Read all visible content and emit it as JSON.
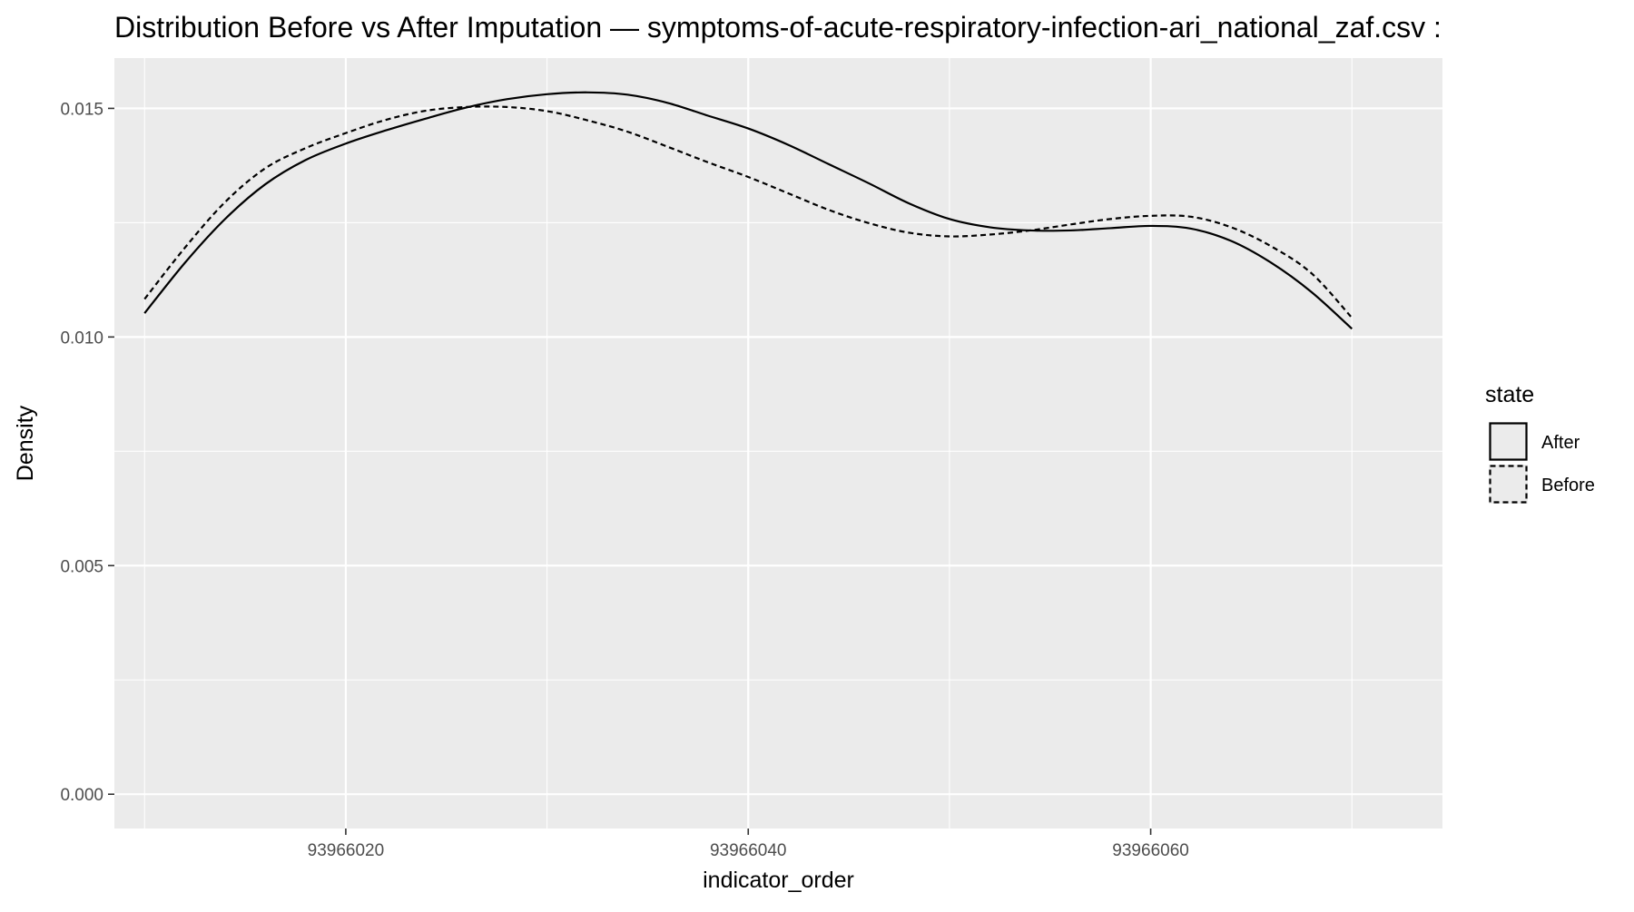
{
  "chart_data": {
    "type": "line",
    "title": "Distribution Before vs After Imputation — symptoms-of-acute-respiratory-infection-ari_national_zaf.csv :",
    "xlabel": "indicator_order",
    "ylabel": "Density",
    "xlim": [
      93966008.5,
      93966074.5
    ],
    "ylim": [
      -0.00075,
      0.0161
    ],
    "x_ticks": [
      93966020,
      93966040,
      93966060
    ],
    "x_tick_labels": [
      "93966020",
      "93966040",
      "93966060"
    ],
    "y_ticks": [
      0.0,
      0.005,
      0.01,
      0.015
    ],
    "y_tick_labels": [
      "0.000",
      "0.005",
      "0.010",
      "0.015"
    ],
    "grid": true,
    "background": "#ebebeb",
    "legend": {
      "title": "state",
      "position": "right",
      "entries": [
        {
          "label": "After",
          "linetype": "solid"
        },
        {
          "label": "Before",
          "linetype": "dashed"
        }
      ]
    },
    "series": [
      {
        "name": "After",
        "linetype": "solid",
        "color": "#000000",
        "x": [
          93966010,
          93966012,
          93966014,
          93966016,
          93966018,
          93966020,
          93966022,
          93966024,
          93966026,
          93966028,
          93966030,
          93966032,
          93966034,
          93966036,
          93966038,
          93966040,
          93966042,
          93966044,
          93966046,
          93966048,
          93966050,
          93966052,
          93966054,
          93966056,
          93966058,
          93966060,
          93966062,
          93966064,
          93966066,
          93966068,
          93966070
        ],
        "y": [
          0.01052,
          0.01162,
          0.01258,
          0.01334,
          0.01387,
          0.01423,
          0.01452,
          0.01478,
          0.01502,
          0.0152,
          0.01531,
          0.01535,
          0.0153,
          0.01512,
          0.01484,
          0.01456,
          0.0142,
          0.01378,
          0.01336,
          0.01292,
          0.01258,
          0.0124,
          0.01233,
          0.01233,
          0.01238,
          0.01243,
          0.01237,
          0.0121,
          0.01162,
          0.01098,
          0.01018
        ]
      },
      {
        "name": "Before",
        "linetype": "dashed",
        "color": "#000000",
        "x": [
          93966010,
          93966012,
          93966014,
          93966016,
          93966018,
          93966020,
          93966022,
          93966024,
          93966026,
          93966028,
          93966030,
          93966032,
          93966034,
          93966036,
          93966038,
          93966040,
          93966042,
          93966044,
          93966046,
          93966048,
          93966050,
          93966052,
          93966054,
          93966056,
          93966058,
          93966060,
          93966062,
          93966064,
          93966066,
          93966068,
          93966070
        ],
        "y": [
          0.01083,
          0.01195,
          0.01295,
          0.01369,
          0.01413,
          0.01446,
          0.01475,
          0.01495,
          0.01503,
          0.01503,
          0.01494,
          0.01474,
          0.01449,
          0.01416,
          0.01382,
          0.0135,
          0.01314,
          0.01278,
          0.01249,
          0.01228,
          0.0122,
          0.01224,
          0.01233,
          0.01246,
          0.01258,
          0.01265,
          0.01263,
          0.0124,
          0.01198,
          0.01139,
          0.01042
        ]
      }
    ]
  }
}
